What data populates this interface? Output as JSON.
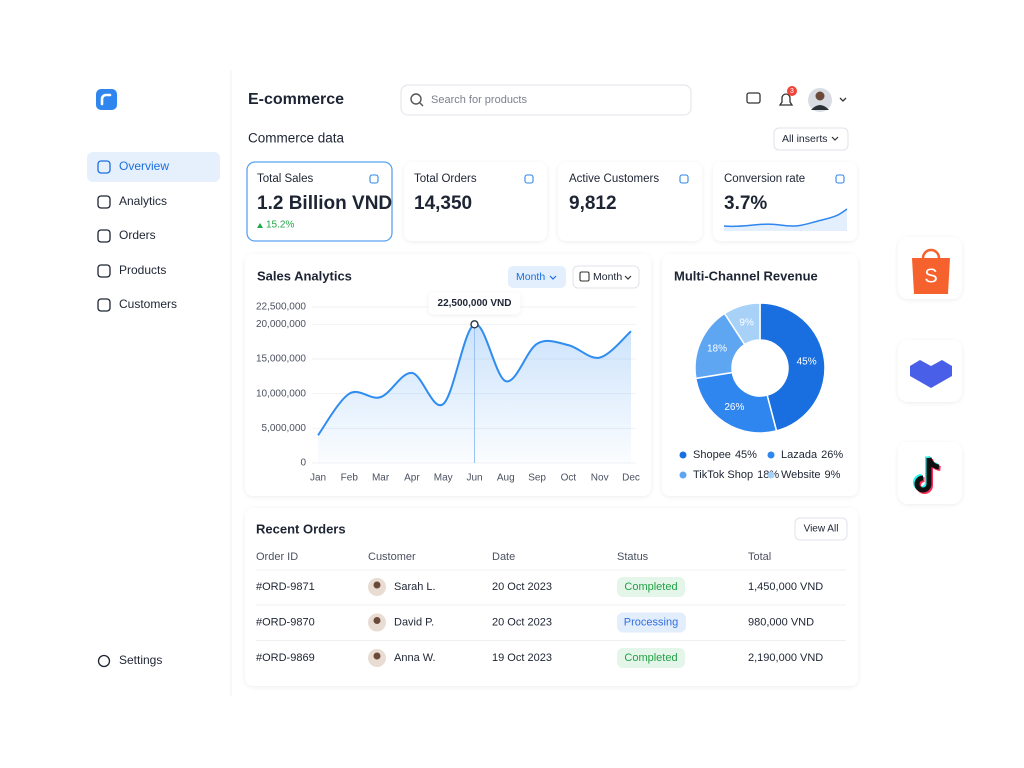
{
  "sidebar": {
    "nav": [
      "Overview",
      "Analytics",
      "Orders",
      "Products",
      "Customers"
    ],
    "settings": "Settings"
  },
  "header": {
    "title": "E-commerce",
    "search_placeholder": "Search for products",
    "notifications": 3
  },
  "section": {
    "title": "Commerce data",
    "filter": "All inserts"
  },
  "kpis": [
    {
      "label": "Total Sales",
      "value": "1.2 Billion VND",
      "change": "15.2%"
    },
    {
      "label": "Total Orders",
      "value": "14,350"
    },
    {
      "label": "Active Customers",
      "value": "9,812"
    },
    {
      "label": "Conversion rate",
      "value": "3.7%"
    }
  ],
  "sales_chart": {
    "type": "line",
    "title": "Sales Analytics",
    "controls": [
      "Month",
      "Month"
    ],
    "categories": [
      "Jan",
      "Feb",
      "Mar",
      "Apr",
      "May",
      "Jun",
      "Aug",
      "Sep",
      "Oct",
      "Nov",
      "Dec"
    ],
    "values": [
      4000000,
      10000000,
      9500000,
      13000000,
      8500000,
      20000000,
      11800000,
      17200000,
      17000000,
      15200000,
      19000000
    ],
    "color": "#2f8cf0",
    "annotation": "22,500,000 VND",
    "ylim": [
      0,
      22500000
    ],
    "yticks": [
      0,
      {
        "value": 5000000,
        "label": "5,000,000"
      },
      {
        "value": 10000000,
        "label": "10,000,000"
      },
      {
        "value": 15000000,
        "label": "15,000,000"
      },
      {
        "value": 20000000,
        "label": "20,000,000"
      },
      {
        "value": 22500000,
        "label": "22,500,000"
      }
    ],
    "grid": true
  },
  "revenue_chart": {
    "type": "donut",
    "title": "Multi-Channel Revenue",
    "categories": [
      "Shopee",
      "Lazada",
      "TikTok Shop",
      "Website"
    ],
    "values": [
      45,
      26,
      18,
      9
    ],
    "value_labels": [
      "45%",
      "26%",
      "18%",
      "9%"
    ],
    "colors": [
      "#1a6fe0",
      "#2f86ee",
      "#5ea6f2",
      "#a8d1f8"
    ]
  },
  "orders": {
    "title": "Recent Orders",
    "action": "View All",
    "columns": [
      "Order ID",
      "Customer",
      "Date",
      "Status",
      "Total"
    ],
    "rows": [
      [
        "#ORD-9871",
        "Sarah L.",
        "20 Oct 2023",
        "Completed",
        "1,450,000 VND"
      ],
      [
        "#ORD-9870",
        "David P.",
        "20 Oct 2023",
        "Processing",
        "980,000 VND"
      ],
      [
        "#ORD-9869",
        "Anna W.",
        "19 Oct 2023",
        "Completed",
        "2,190,000 VND"
      ]
    ]
  }
}
